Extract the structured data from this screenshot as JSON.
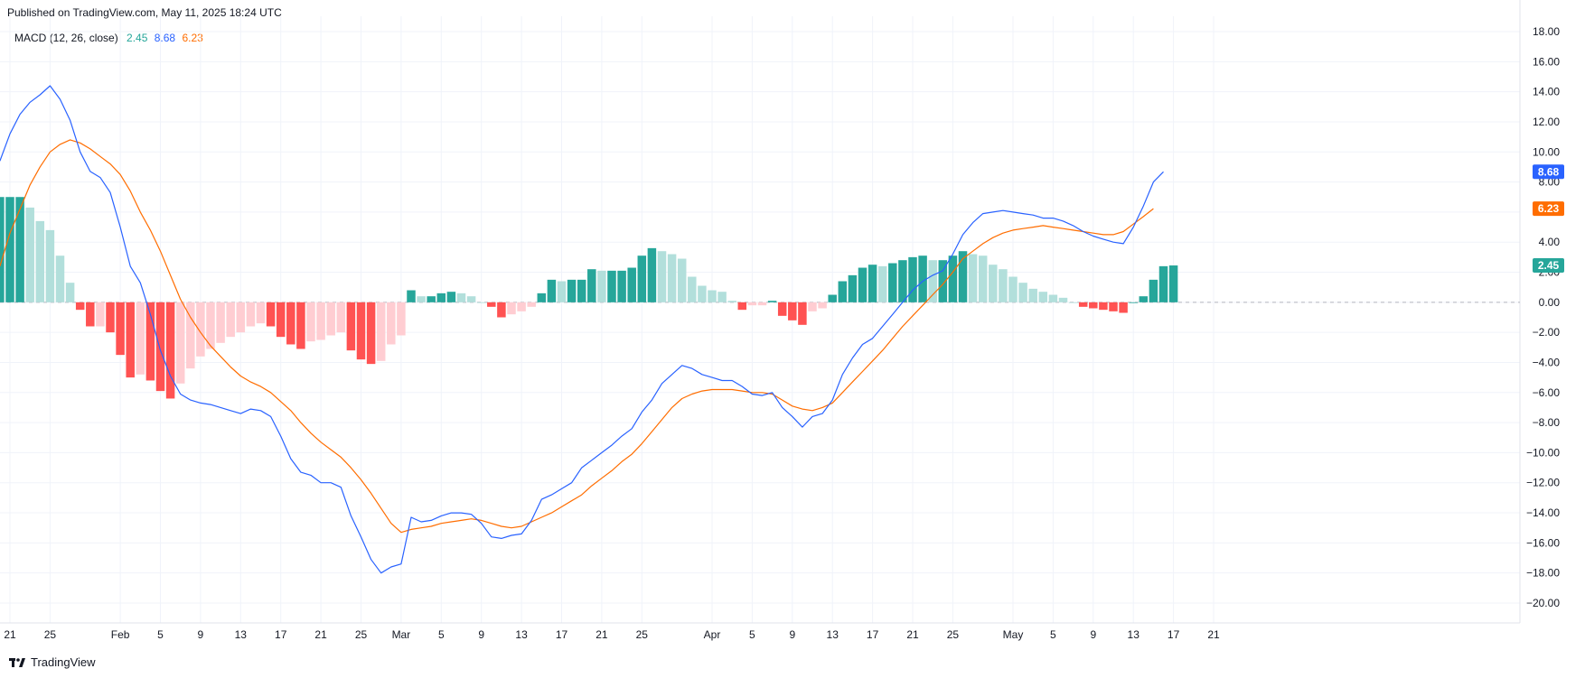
{
  "header": {
    "published": "Published on TradingView.com, May 11, 2025 18:24 UTC"
  },
  "indicator": {
    "name": "MACD (12, 26, close)",
    "hist_value": "2.45",
    "macd_value": "8.68",
    "signal_value": "6.23"
  },
  "footer": {
    "brand": "TradingView",
    "logo_icon": "tradingview-logo-icon"
  },
  "colors": {
    "macd_line": "#2962FF",
    "signal_line": "#FF6D00",
    "hist_pos_strong": "#26A69A",
    "hist_pos_weak": "#B2DFDB",
    "hist_neg_strong": "#FF5252",
    "hist_neg_weak": "#FFCDD2",
    "grid": "#F0F3FA",
    "axis_text": "#131722"
  },
  "chart_data": {
    "type": "line",
    "title": "",
    "xlabel": "",
    "ylabel": "",
    "ylim": [
      -21,
      19
    ],
    "grid": true,
    "y_ticks": [
      18,
      16,
      14,
      12,
      10,
      8,
      6,
      4,
      2,
      0,
      -2,
      -4,
      -6,
      -8,
      -10,
      -12,
      -14,
      -16,
      -18,
      -20
    ],
    "y_tick_labels": [
      "18.00",
      "16.00",
      "14.00",
      "12.00",
      "10.00",
      "8.00",
      "6.00",
      "4.00",
      "2.00",
      "0.00",
      "−2.00",
      "−4.00",
      "−6.00",
      "−8.00",
      "−10.00",
      "−12.00",
      "−14.00",
      "−16.00",
      "−18.00",
      "−20.00"
    ],
    "x_tick_labels": [
      {
        "label": "21",
        "date": "2025-01-21"
      },
      {
        "label": "25",
        "date": "2025-01-25"
      },
      {
        "label": "Feb",
        "date": "2025-02-01"
      },
      {
        "label": "5",
        "date": "2025-02-05"
      },
      {
        "label": "9",
        "date": "2025-02-09"
      },
      {
        "label": "13",
        "date": "2025-02-13"
      },
      {
        "label": "17",
        "date": "2025-02-17"
      },
      {
        "label": "21",
        "date": "2025-02-21"
      },
      {
        "label": "25",
        "date": "2025-02-25"
      },
      {
        "label": "Mar",
        "date": "2025-03-01"
      },
      {
        "label": "5",
        "date": "2025-03-05"
      },
      {
        "label": "9",
        "date": "2025-03-09"
      },
      {
        "label": "13",
        "date": "2025-03-13"
      },
      {
        "label": "17",
        "date": "2025-03-17"
      },
      {
        "label": "21",
        "date": "2025-03-21"
      },
      {
        "label": "25",
        "date": "2025-03-25"
      },
      {
        "label": "Apr",
        "date": "2025-04-01"
      },
      {
        "label": "5",
        "date": "2025-04-05"
      },
      {
        "label": "9",
        "date": "2025-04-09"
      },
      {
        "label": "13",
        "date": "2025-04-13"
      },
      {
        "label": "17",
        "date": "2025-04-17"
      },
      {
        "label": "21",
        "date": "2025-04-21"
      },
      {
        "label": "25",
        "date": "2025-04-25"
      },
      {
        "label": "May",
        "date": "2025-05-01"
      },
      {
        "label": "5",
        "date": "2025-05-05"
      },
      {
        "label": "9",
        "date": "2025-05-09"
      },
      {
        "label": "13",
        "date": "2025-05-13"
      },
      {
        "label": "17",
        "date": "2025-05-17"
      },
      {
        "label": "21",
        "date": "2025-05-21"
      }
    ],
    "x_range": [
      "2025-01-21",
      "2025-05-21"
    ],
    "start_date": "2025-01-20",
    "last_values": {
      "macd": "8.68",
      "signal": "6.23",
      "histogram": "2.45"
    },
    "series": [
      {
        "key": "macd",
        "values": [
          9.4,
          11.2,
          12.5,
          13.3,
          13.8,
          14.4,
          13.5,
          12.1,
          10.0,
          8.7,
          8.3,
          7.3,
          5.0,
          2.4,
          1.3,
          -0.8,
          -3.2,
          -4.9,
          -6.1,
          -6.5,
          -6.7,
          -6.8,
          -7.0,
          -7.2,
          -7.4,
          -7.1,
          -7.2,
          -7.6,
          -8.9,
          -10.4,
          -11.3,
          -11.5,
          -12.0,
          -12.0,
          -12.3,
          -14.2,
          -15.6,
          -17.1,
          -18.0,
          -17.6,
          -17.4,
          -14.3,
          -14.6,
          -14.5,
          -14.2,
          -14.0,
          -14.0,
          -14.1,
          -14.7,
          -15.6,
          -15.7,
          -15.5,
          -15.4,
          -14.5,
          -13.1,
          -12.8,
          -12.4,
          -12.0,
          -11.0,
          -10.5,
          -10.0,
          -9.5,
          -8.9,
          -8.4,
          -7.3,
          -6.5,
          -5.4,
          -4.8,
          -4.2,
          -4.4,
          -4.8,
          -5.0,
          -5.2,
          -5.2,
          -5.6,
          -6.1,
          -6.2,
          -6.0,
          -7.0,
          -7.6,
          -8.3,
          -7.6,
          -7.4,
          -6.5,
          -4.8,
          -3.7,
          -2.8,
          -2.4,
          -1.6,
          -0.8,
          0.0,
          0.8,
          1.4,
          1.8,
          2.1,
          3.2,
          4.5,
          5.3,
          5.9,
          6.0,
          6.1,
          6.0,
          5.9,
          5.8,
          5.6,
          5.6,
          5.4,
          5.1,
          4.7,
          4.4,
          4.2,
          4.0,
          3.9,
          5.0,
          6.4,
          8.0,
          8.68
        ]
      },
      {
        "key": "signal",
        "values": [
          2.4,
          4.6,
          6.2,
          7.8,
          9.0,
          10.0,
          10.5,
          10.8,
          10.6,
          10.2,
          9.7,
          9.2,
          8.5,
          7.4,
          6.0,
          4.8,
          3.4,
          1.8,
          0.2,
          -1.0,
          -2.0,
          -2.9,
          -3.6,
          -4.3,
          -4.9,
          -5.3,
          -5.6,
          -6.0,
          -6.6,
          -7.2,
          -8.0,
          -8.7,
          -9.3,
          -9.8,
          -10.3,
          -11.0,
          -11.8,
          -12.7,
          -13.7,
          -14.7,
          -15.3,
          -15.1,
          -15.0,
          -14.9,
          -14.7,
          -14.6,
          -14.5,
          -14.4,
          -14.5,
          -14.7,
          -14.9,
          -15.0,
          -14.9,
          -14.6,
          -14.3,
          -14.0,
          -13.6,
          -13.2,
          -12.8,
          -12.2,
          -11.7,
          -11.2,
          -10.6,
          -10.1,
          -9.4,
          -8.6,
          -7.8,
          -7.0,
          -6.4,
          -6.1,
          -5.9,
          -5.8,
          -5.8,
          -5.8,
          -5.9,
          -6.0,
          -6.0,
          -6.1,
          -6.5,
          -6.9,
          -7.1,
          -7.2,
          -7.0,
          -6.7,
          -6.0,
          -5.3,
          -4.6,
          -3.9,
          -3.2,
          -2.4,
          -1.6,
          -0.9,
          -0.2,
          0.5,
          1.2,
          2.0,
          2.9,
          3.4,
          3.9,
          4.3,
          4.6,
          4.8,
          4.9,
          5.0,
          5.1,
          5.0,
          4.9,
          4.8,
          4.7,
          4.6,
          4.5,
          4.5,
          4.7,
          5.2,
          5.7,
          6.23
        ]
      },
      {
        "key": "histogram",
        "values": [
          7.0,
          7.0,
          7.0,
          6.3,
          5.4,
          4.8,
          3.1,
          1.3,
          -0.5,
          -1.6,
          -1.6,
          -2.0,
          -3.5,
          -5.0,
          -4.8,
          -5.2,
          -5.9,
          -6.4,
          -5.4,
          -4.4,
          -3.6,
          -3.1,
          -2.7,
          -2.3,
          -2.0,
          -1.6,
          -1.4,
          -1.6,
          -2.3,
          -2.8,
          -3.1,
          -2.6,
          -2.5,
          -2.2,
          -2.0,
          -3.2,
          -3.8,
          -4.1,
          -3.9,
          -2.8,
          -2.2,
          0.8,
          0.4,
          0.4,
          0.6,
          0.7,
          0.6,
          0.4,
          0.0,
          -0.3,
          -1.0,
          -0.8,
          -0.6,
          -0.3,
          0.6,
          1.5,
          1.4,
          1.5,
          1.5,
          2.2,
          2.1,
          2.1,
          2.1,
          2.3,
          3.1,
          3.6,
          3.4,
          3.2,
          2.9,
          1.7,
          1.1,
          0.8,
          0.7,
          0.1,
          -0.5,
          -0.2,
          -0.2,
          0.1,
          -0.9,
          -1.2,
          -1.5,
          -0.6,
          -0.4,
          0.5,
          1.4,
          1.8,
          2.3,
          2.5,
          2.4,
          2.6,
          2.8,
          3.0,
          3.1,
          2.8,
          2.8,
          3.1,
          3.4,
          3.2,
          3.1,
          2.5,
          2.2,
          1.7,
          1.3,
          0.9,
          0.7,
          0.5,
          0.3,
          0.0,
          -0.3,
          -0.4,
          -0.5,
          -0.6,
          -0.7,
          0.0,
          0.4,
          1.5,
          2.4,
          2.45
        ]
      }
    ]
  }
}
